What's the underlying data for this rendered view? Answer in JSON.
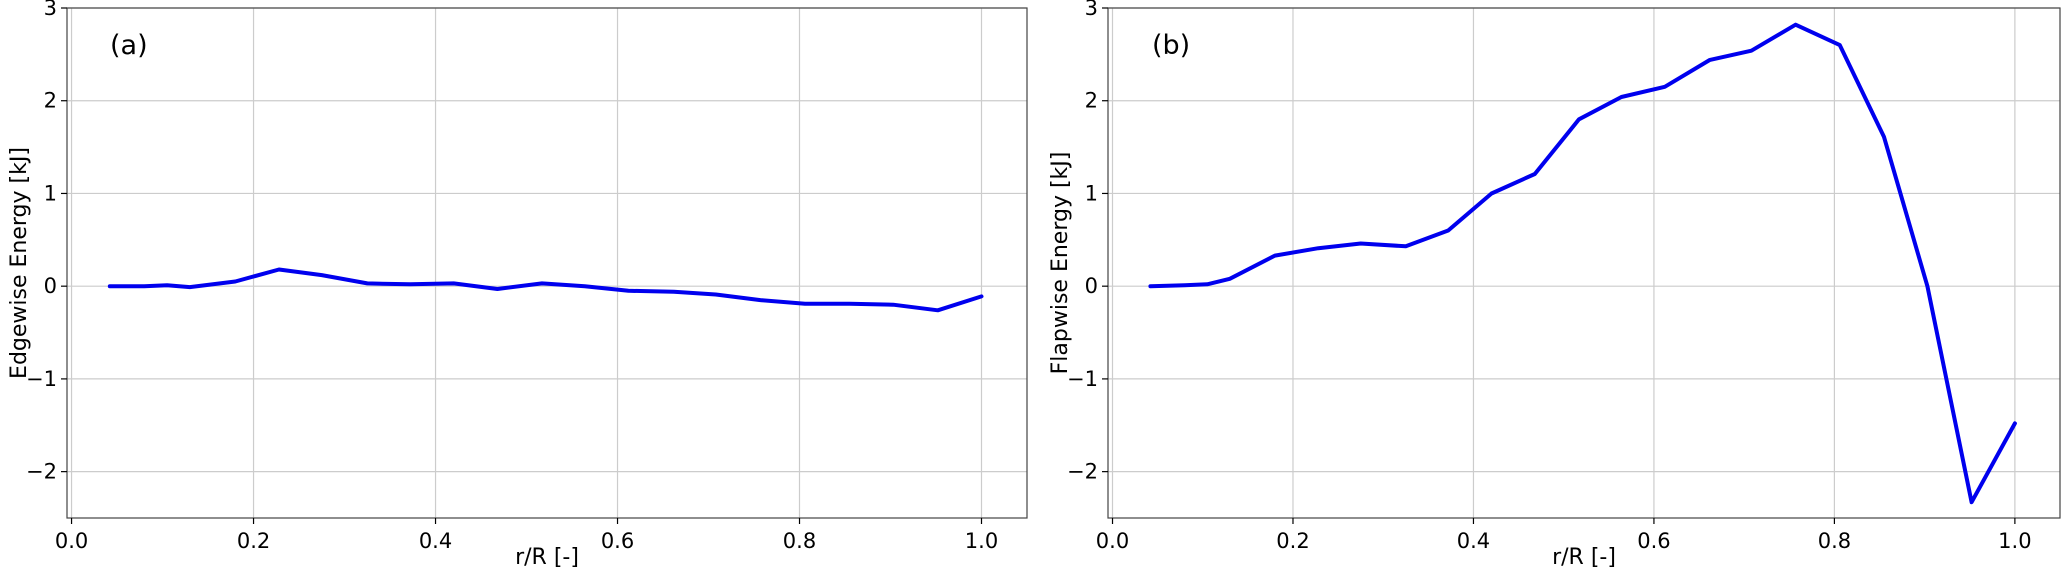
{
  "colors": {
    "line": "#0000ee",
    "grid": "#cccccc",
    "frame": "#444444"
  },
  "chart_data": [
    {
      "type": "line",
      "panel_label": "(a)",
      "title": "",
      "xlabel": "r/R [-]",
      "ylabel": "Edgewise Energy [kJ]",
      "xlim": [
        -0.005,
        1.05
      ],
      "ylim": [
        -2.5,
        3.0
      ],
      "xticks": [
        0.0,
        0.2,
        0.4,
        0.6,
        0.8,
        1.0
      ],
      "xtick_labels": [
        "0.0",
        "0.2",
        "0.4",
        "0.6",
        "0.8",
        "1.0"
      ],
      "yticks": [
        -2,
        -1,
        0,
        1,
        2,
        3
      ],
      "ytick_labels": [
        "−2",
        "−1",
        "0",
        "1",
        "2",
        "3"
      ],
      "grid": true,
      "series": [
        {
          "x": [
            0.042,
            0.08,
            0.105,
            0.13,
            0.18,
            0.228,
            0.275,
            0.325,
            0.372,
            0.42,
            0.468,
            0.517,
            0.564,
            0.612,
            0.662,
            0.708,
            0.757,
            0.806,
            0.855,
            0.903,
            0.952,
            1.0
          ],
          "y": [
            0.0,
            0.0,
            0.01,
            -0.01,
            0.05,
            0.18,
            0.12,
            0.03,
            0.02,
            0.03,
            -0.03,
            0.03,
            0.0,
            -0.05,
            -0.06,
            -0.09,
            -0.15,
            -0.19,
            -0.19,
            -0.2,
            -0.26,
            -0.11
          ]
        }
      ]
    },
    {
      "type": "line",
      "panel_label": "(b)",
      "title": "",
      "xlabel": "r/R [-]",
      "ylabel": "Flapwise Energy [kJ]",
      "xlim": [
        -0.005,
        1.05
      ],
      "ylim": [
        -2.5,
        3.0
      ],
      "xticks": [
        0.0,
        0.2,
        0.4,
        0.6,
        0.8,
        1.0
      ],
      "xtick_labels": [
        "0.0",
        "0.2",
        "0.4",
        "0.6",
        "0.8",
        "1.0"
      ],
      "yticks": [
        -2,
        -1,
        0,
        1,
        2,
        3
      ],
      "ytick_labels": [
        "−2",
        "−1",
        "0",
        "1",
        "2",
        "3"
      ],
      "grid": true,
      "series": [
        {
          "x": [
            0.042,
            0.08,
            0.105,
            0.13,
            0.18,
            0.228,
            0.275,
            0.325,
            0.372,
            0.42,
            0.468,
            0.517,
            0.564,
            0.612,
            0.662,
            0.708,
            0.757,
            0.806,
            0.855,
            0.903,
            0.952,
            1.0
          ],
          "y": [
            0.0,
            0.01,
            0.02,
            0.08,
            0.33,
            0.41,
            0.46,
            0.43,
            0.6,
            1.0,
            1.21,
            1.8,
            2.04,
            2.15,
            2.44,
            2.54,
            2.82,
            2.6,
            1.61,
            0.0,
            -2.33,
            -1.48
          ]
        }
      ]
    }
  ]
}
